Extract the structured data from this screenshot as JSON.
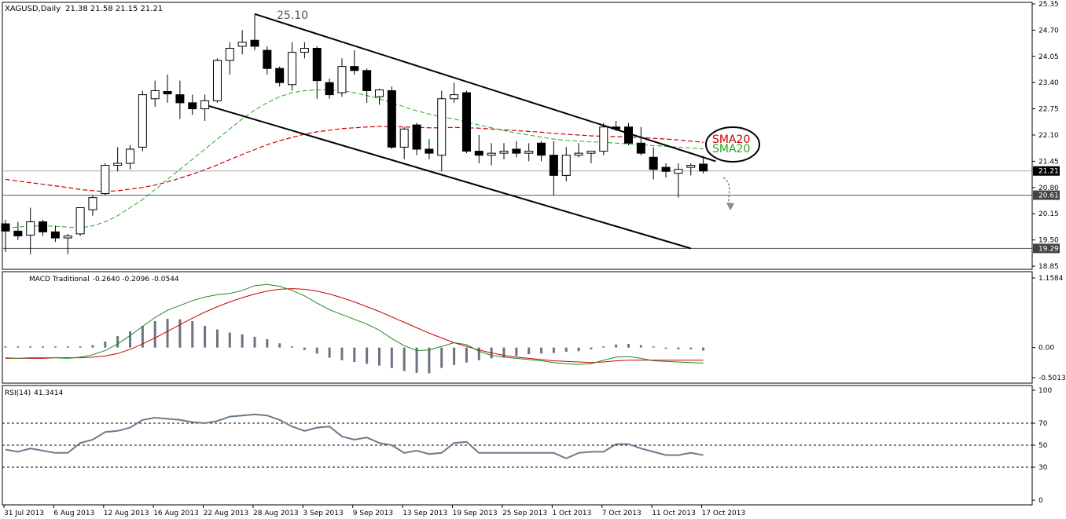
{
  "header": {
    "title": "XAGUSD,Daily",
    "ohlc": "21.38 21.58 21.15 21.21"
  },
  "annotations": {
    "peak_label": "25.10",
    "sma_red": "SMA20",
    "sma_green": "SMA20"
  },
  "colors": {
    "candle_up": "#ffffff",
    "candle_down": "#000000",
    "sma_red": "#cc0000",
    "sma_green": "#22aa22",
    "macd_line": "#228822",
    "signal_line": "#cc0000",
    "histogram": "#6b7280",
    "rsi_line": "#6b7b8c",
    "channel": "#000000"
  },
  "chart_data": [
    {
      "type": "candlestick",
      "title": "XAGUSD,Daily",
      "ylim": [
        18.85,
        25.35
      ],
      "y_ticks": [
        25.35,
        24.7,
        24.05,
        23.4,
        22.75,
        22.1,
        21.45,
        20.8,
        20.15,
        19.5,
        18.85
      ],
      "price_tags": [
        "21.21",
        "20.61",
        "19.29"
      ],
      "x_tick_labels": [
        "31 Jul 2013",
        "6 Aug 2013",
        "12 Aug 2013",
        "16 Aug 2013",
        "22 Aug 2013",
        "28 Aug 2013",
        "3 Sep 2013",
        "9 Sep 2013",
        "13 Sep 2013",
        "19 Sep 2013",
        "25 Sep 2013",
        "1 Oct 2013",
        "7 Oct 2013",
        "11 Oct 2013",
        "17 Oct 2013"
      ],
      "x_tick_index": [
        0,
        4,
        8,
        12,
        16,
        20,
        24,
        28,
        32,
        36,
        40,
        44,
        48,
        52,
        56
      ],
      "ohlc": [
        [
          19.9,
          20.0,
          19.2,
          19.72
        ],
        [
          19.72,
          19.95,
          19.5,
          19.6
        ],
        [
          19.62,
          20.3,
          19.15,
          19.95
        ],
        [
          19.95,
          20.0,
          19.6,
          19.7
        ],
        [
          19.7,
          19.85,
          19.45,
          19.55
        ],
        [
          19.55,
          19.65,
          19.15,
          19.6
        ],
        [
          19.65,
          20.3,
          19.6,
          20.3
        ],
        [
          20.25,
          20.6,
          20.1,
          20.55
        ],
        [
          20.65,
          21.4,
          20.6,
          21.35
        ],
        [
          21.35,
          21.8,
          21.2,
          21.4
        ],
        [
          21.4,
          21.85,
          21.25,
          21.75
        ],
        [
          21.8,
          23.2,
          21.7,
          23.1
        ],
        [
          23.0,
          23.45,
          22.8,
          23.2
        ],
        [
          23.18,
          23.6,
          22.9,
          23.12
        ],
        [
          23.1,
          23.45,
          22.5,
          22.9
        ],
        [
          22.9,
          23.1,
          22.6,
          22.75
        ],
        [
          22.75,
          23.1,
          22.45,
          22.95
        ],
        [
          22.95,
          24.0,
          22.9,
          23.95
        ],
        [
          23.95,
          24.4,
          23.6,
          24.25
        ],
        [
          24.3,
          24.7,
          24.1,
          24.4
        ],
        [
          24.45,
          25.1,
          24.2,
          24.3
        ],
        [
          24.2,
          24.3,
          23.6,
          23.75
        ],
        [
          23.75,
          23.8,
          23.3,
          23.4
        ],
        [
          23.35,
          24.4,
          23.2,
          24.15
        ],
        [
          24.15,
          24.4,
          24.0,
          24.25
        ],
        [
          24.25,
          24.3,
          23.0,
          23.45
        ],
        [
          23.4,
          23.5,
          23.0,
          23.1
        ],
        [
          23.15,
          24.0,
          23.05,
          23.8
        ],
        [
          23.8,
          24.2,
          23.6,
          23.7
        ],
        [
          23.7,
          23.75,
          22.9,
          23.2
        ],
        [
          23.05,
          23.25,
          22.85,
          23.22
        ],
        [
          23.2,
          23.3,
          21.75,
          21.8
        ],
        [
          21.8,
          22.3,
          21.5,
          22.25
        ],
        [
          22.35,
          22.4,
          21.6,
          21.75
        ],
        [
          21.75,
          22.0,
          21.5,
          21.65
        ],
        [
          21.6,
          23.2,
          21.2,
          23.0
        ],
        [
          23.0,
          23.4,
          22.9,
          23.1
        ],
        [
          23.15,
          23.2,
          21.65,
          21.7
        ],
        [
          21.7,
          22.1,
          21.4,
          21.6
        ],
        [
          21.6,
          21.9,
          21.35,
          21.65
        ],
        [
          21.65,
          21.9,
          21.5,
          21.7
        ],
        [
          21.75,
          21.95,
          21.55,
          21.65
        ],
        [
          21.65,
          21.9,
          21.45,
          21.7
        ],
        [
          21.9,
          21.95,
          21.45,
          21.6
        ],
        [
          21.6,
          21.95,
          20.6,
          21.1
        ],
        [
          21.1,
          21.8,
          20.95,
          21.6
        ],
        [
          21.6,
          21.9,
          21.55,
          21.65
        ],
        [
          21.65,
          21.7,
          21.4,
          21.7
        ],
        [
          21.7,
          22.4,
          21.6,
          22.3
        ],
        [
          22.3,
          22.45,
          22.2,
          22.25
        ],
        [
          22.3,
          22.4,
          21.85,
          21.9
        ],
        [
          21.9,
          22.3,
          21.6,
          21.65
        ],
        [
          21.55,
          21.8,
          21.0,
          21.25
        ],
        [
          21.3,
          21.4,
          21.05,
          21.2
        ],
        [
          21.15,
          21.4,
          20.55,
          21.25
        ],
        [
          21.3,
          21.4,
          21.1,
          21.35
        ],
        [
          21.38,
          21.58,
          21.15,
          21.21
        ]
      ],
      "sma_red_values": [
        21.0,
        20.96,
        20.92,
        20.88,
        20.84,
        20.8,
        20.75,
        20.72,
        20.7,
        20.72,
        20.76,
        20.8,
        20.86,
        20.94,
        21.03,
        21.13,
        21.24,
        21.36,
        21.49,
        21.62,
        21.74,
        21.86,
        21.96,
        22.04,
        22.12,
        22.18,
        22.22,
        22.26,
        22.28,
        22.3,
        22.31,
        22.31,
        22.3,
        22.29,
        22.28,
        22.28,
        22.29,
        22.28,
        22.27,
        22.25,
        22.23,
        22.21,
        22.19,
        22.17,
        22.14,
        22.12,
        22.1,
        22.08,
        22.07,
        22.06,
        22.05,
        22.04,
        22.02,
        22.0,
        21.98,
        21.95,
        21.92
      ],
      "sma_green_values": [
        19.8,
        19.82,
        19.84,
        19.85,
        19.84,
        19.82,
        19.8,
        19.85,
        19.95,
        20.1,
        20.3,
        20.5,
        20.75,
        21.0,
        21.25,
        21.5,
        21.75,
        22.0,
        22.25,
        22.5,
        22.72,
        22.9,
        23.05,
        23.15,
        23.2,
        23.22,
        23.22,
        23.2,
        23.15,
        23.08,
        23.0,
        22.9,
        22.8,
        22.7,
        22.62,
        22.55,
        22.5,
        22.42,
        22.35,
        22.28,
        22.21,
        22.15,
        22.1,
        22.05,
        22.0,
        21.97,
        21.95,
        21.93,
        21.92,
        21.9,
        21.88,
        21.86,
        21.84,
        21.82,
        21.8,
        21.78,
        21.76
      ],
      "channel_upper": [
        [
          20,
          25.1
        ],
        [
          57,
          21.45
        ]
      ],
      "channel_lower": [
        [
          16,
          22.85
        ],
        [
          55,
          19.29
        ]
      ]
    },
    {
      "type": "bar+line",
      "title": "MACD Traditional",
      "values_text": "-0.2640 -0.2096 -0.0544",
      "ylim": [
        -0.5013,
        1.1584
      ],
      "y_ticks": [
        "1.1584",
        "0.00",
        "-0.5013"
      ],
      "histogram": [
        0.02,
        0.01,
        0.02,
        0.01,
        0.0,
        0.01,
        0.02,
        0.04,
        0.1,
        0.19,
        0.27,
        0.36,
        0.44,
        0.48,
        0.47,
        0.44,
        0.36,
        0.3,
        0.25,
        0.22,
        0.18,
        0.14,
        0.07,
        0.02,
        -0.04,
        -0.1,
        -0.17,
        -0.21,
        -0.24,
        -0.27,
        -0.3,
        -0.34,
        -0.39,
        -0.42,
        -0.43,
        -0.34,
        -0.29,
        -0.25,
        -0.21,
        -0.18,
        -0.17,
        -0.14,
        -0.11,
        -0.1,
        -0.09,
        -0.07,
        -0.06,
        -0.03,
        0.02,
        0.05,
        0.06,
        0.04,
        0.01,
        -0.02,
        -0.03,
        -0.03,
        -0.05
      ],
      "macd_line": [
        -0.17,
        -0.18,
        -0.17,
        -0.17,
        -0.17,
        -0.18,
        -0.16,
        -0.12,
        -0.05,
        0.06,
        0.2,
        0.35,
        0.5,
        0.62,
        0.7,
        0.78,
        0.84,
        0.88,
        0.9,
        0.95,
        1.03,
        1.05,
        1.02,
        0.95,
        0.86,
        0.74,
        0.63,
        0.55,
        0.47,
        0.39,
        0.29,
        0.15,
        0.03,
        -0.05,
        -0.04,
        0.02,
        0.08,
        0.05,
        -0.06,
        -0.13,
        -0.16,
        -0.18,
        -0.2,
        -0.22,
        -0.25,
        -0.27,
        -0.28,
        -0.27,
        -0.21,
        -0.16,
        -0.15,
        -0.18,
        -0.22,
        -0.23,
        -0.24,
        -0.25,
        -0.26
      ],
      "signal_line": [
        -0.18,
        -0.18,
        -0.18,
        -0.18,
        -0.17,
        -0.17,
        -0.17,
        -0.16,
        -0.14,
        -0.1,
        -0.03,
        0.06,
        0.16,
        0.27,
        0.38,
        0.49,
        0.59,
        0.68,
        0.76,
        0.83,
        0.89,
        0.94,
        0.97,
        0.98,
        0.97,
        0.94,
        0.89,
        0.83,
        0.76,
        0.68,
        0.6,
        0.51,
        0.42,
        0.33,
        0.24,
        0.16,
        0.08,
        0.02,
        -0.04,
        -0.09,
        -0.13,
        -0.16,
        -0.18,
        -0.2,
        -0.22,
        -0.23,
        -0.24,
        -0.25,
        -0.24,
        -0.22,
        -0.21,
        -0.21,
        -0.21,
        -0.21,
        -0.21,
        -0.21,
        -0.21
      ]
    },
    {
      "type": "line",
      "title": "RSI(14)",
      "value_text": "41.3414",
      "ylim": [
        0,
        100
      ],
      "y_ticks": [
        100,
        70,
        50,
        30,
        0
      ],
      "levels": [
        70,
        50,
        30
      ],
      "values": [
        46,
        44,
        47,
        45,
        43,
        43,
        52,
        55,
        62,
        63,
        66,
        73,
        75,
        74,
        73,
        71,
        70,
        72,
        76,
        77,
        78,
        77,
        73,
        67,
        63,
        66,
        67,
        58,
        55,
        57,
        52,
        50,
        43,
        45,
        42,
        43,
        52,
        53,
        43,
        43,
        43,
        43,
        43,
        43,
        43,
        38,
        43,
        44,
        44,
        51,
        51,
        47,
        44,
        41,
        41,
        43,
        41
      ]
    }
  ]
}
